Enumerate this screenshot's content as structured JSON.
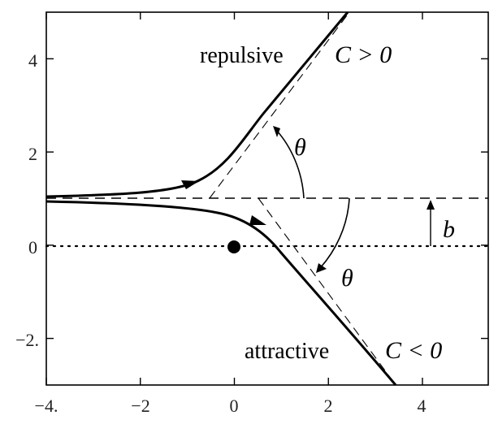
{
  "figure": {
    "axes": {
      "x_range": [
        -4.0,
        5.4
      ],
      "y_range": [
        -3.0,
        5.0
      ],
      "x_ticks": [
        {
          "value": -4,
          "label": "−4."
        },
        {
          "value": -2,
          "label": "−2"
        },
        {
          "value": 0,
          "label": "0"
        },
        {
          "value": 2,
          "label": "2"
        },
        {
          "value": 4,
          "label": "4"
        }
      ],
      "y_ticks": [
        {
          "value": 4,
          "label": "4"
        },
        {
          "value": 2,
          "label": "2"
        },
        {
          "value": 0,
          "label": "0"
        },
        {
          "value": -2,
          "label": "−2."
        }
      ]
    },
    "labels": {
      "repulsive": "repulsive",
      "c_positive": "C > 0",
      "theta_upper": "θ",
      "theta_lower": "θ",
      "b": "b",
      "attractive": "attractive",
      "c_negative": "C < 0"
    },
    "impact_parameter": 1.0,
    "scattering_center": [
      0,
      0
    ],
    "colors": {
      "ink": "#000000",
      "background": "#ffffff"
    }
  }
}
